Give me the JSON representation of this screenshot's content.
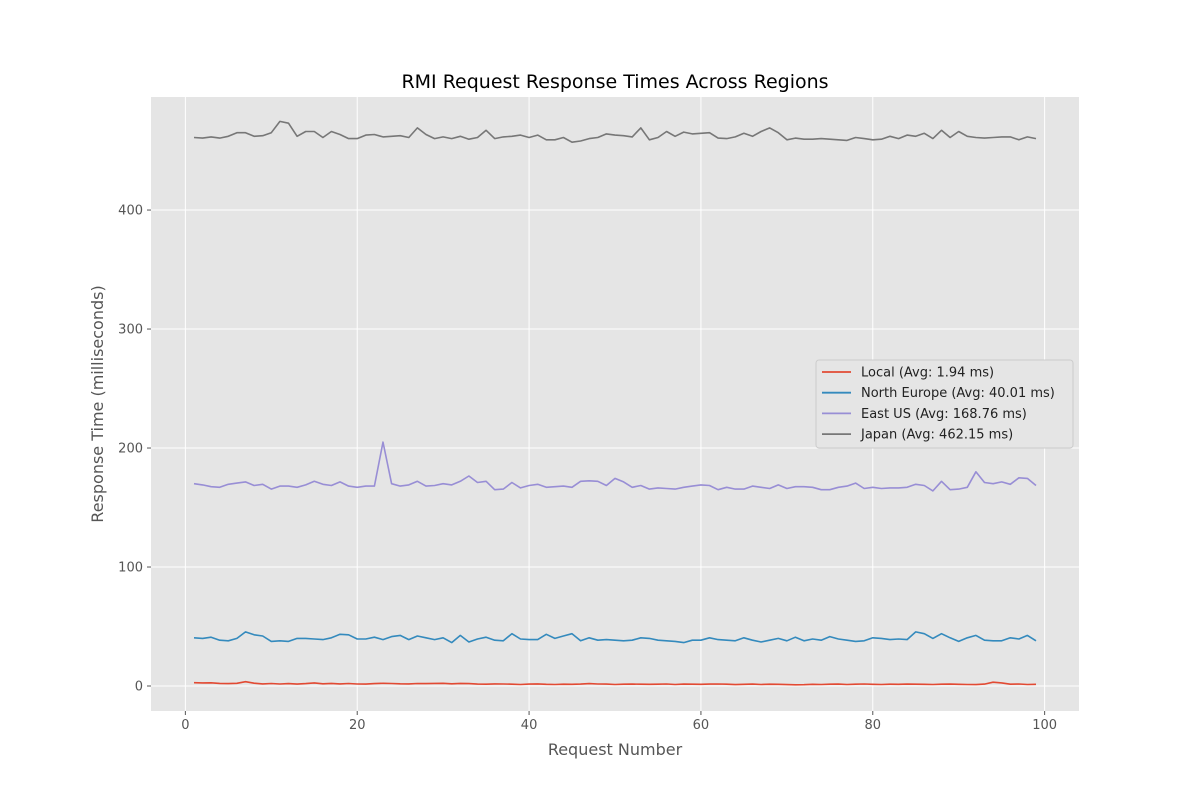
{
  "chart_data": {
    "type": "line",
    "title": "RMI Request Response Times Across Regions",
    "xlabel": "Request Number",
    "ylabel": "Response Time (milliseconds)",
    "xlim": [
      -4,
      104
    ],
    "ylim": [
      -21,
      495
    ],
    "xticks": [
      0,
      20,
      40,
      60,
      80,
      100
    ],
    "yticks": [
      0,
      100,
      200,
      300,
      400
    ],
    "grid": true,
    "legend_position": "center-right",
    "series": [
      {
        "name": "Local (Avg: 1.94 ms)",
        "color": "#E24A33",
        "x": [
          1,
          2,
          3,
          4,
          5,
          6,
          7,
          8,
          9,
          10,
          11,
          12,
          13,
          14,
          15,
          16,
          17,
          18,
          19,
          20,
          21,
          22,
          23,
          24,
          25,
          26,
          27,
          28,
          29,
          30,
          31,
          32,
          33,
          34,
          35,
          36,
          37,
          38,
          39,
          40,
          41,
          42,
          43,
          44,
          45,
          46,
          47,
          48,
          49,
          50,
          51,
          52,
          53,
          54,
          55,
          56,
          57,
          58,
          59,
          60,
          61,
          62,
          63,
          64,
          65,
          66,
          67,
          68,
          69,
          70,
          71,
          72,
          73,
          74,
          75,
          76,
          77,
          78,
          79,
          80,
          81,
          82,
          83,
          84,
          85,
          86,
          87,
          88,
          89,
          90,
          91,
          92,
          93,
          94,
          95,
          96,
          97,
          98,
          99
        ],
        "y": [
          2.8,
          2.6,
          2.7,
          2.2,
          2.0,
          2.3,
          3.6,
          2.4,
          1.8,
          2.1,
          1.7,
          2.0,
          1.6,
          2.0,
          2.6,
          1.9,
          2.2,
          1.8,
          2.1,
          1.7,
          1.6,
          2.0,
          2.3,
          2.1,
          1.9,
          1.8,
          2.1,
          2.0,
          2.2,
          2.3,
          1.9,
          2.2,
          2.0,
          1.6,
          1.5,
          1.8,
          1.7,
          1.5,
          1.3,
          1.6,
          1.8,
          1.4,
          1.3,
          1.5,
          1.4,
          1.6,
          2.0,
          1.7,
          1.6,
          1.3,
          1.5,
          1.6,
          1.5,
          1.4,
          1.5,
          1.7,
          1.3,
          1.6,
          1.5,
          1.4,
          1.6,
          1.7,
          1.5,
          1.2,
          1.4,
          1.6,
          1.3,
          1.5,
          1.4,
          1.2,
          1.0,
          1.1,
          1.4,
          1.3,
          1.5,
          1.6,
          1.3,
          1.5,
          1.7,
          1.4,
          1.3,
          1.5,
          1.4,
          1.6,
          1.5,
          1.4,
          1.3,
          1.5,
          1.6,
          1.4,
          1.3,
          1.2,
          1.6,
          3.2,
          2.6,
          1.5,
          1.7,
          1.3,
          1.4
        ]
      },
      {
        "name": "North Europe (Avg: 40.01 ms)",
        "color": "#348ABD",
        "x": [
          1,
          2,
          3,
          4,
          5,
          6,
          7,
          8,
          9,
          10,
          11,
          12,
          13,
          14,
          15,
          16,
          17,
          18,
          19,
          20,
          21,
          22,
          23,
          24,
          25,
          26,
          27,
          28,
          29,
          30,
          31,
          32,
          33,
          34,
          35,
          36,
          37,
          38,
          39,
          40,
          41,
          42,
          43,
          44,
          45,
          46,
          47,
          48,
          49,
          50,
          51,
          52,
          53,
          54,
          55,
          56,
          57,
          58,
          59,
          60,
          61,
          62,
          63,
          64,
          65,
          66,
          67,
          68,
          69,
          70,
          71,
          72,
          73,
          74,
          75,
          76,
          77,
          78,
          79,
          80,
          81,
          82,
          83,
          84,
          85,
          86,
          87,
          88,
          89,
          90,
          91,
          92,
          93,
          94,
          95,
          96,
          97,
          98,
          99
        ],
        "y": [
          40.5,
          40.0,
          41.0,
          38.5,
          38.0,
          40.0,
          45.5,
          43.0,
          42.0,
          37.5,
          38.0,
          37.5,
          40.0,
          40.0,
          39.5,
          39.0,
          40.5,
          43.5,
          43.0,
          39.5,
          39.5,
          41.0,
          39.0,
          41.5,
          42.5,
          39.0,
          42.0,
          40.5,
          39.0,
          40.5,
          36.5,
          42.5,
          37.0,
          39.5,
          41.0,
          38.5,
          38.0,
          44.0,
          39.5,
          39.0,
          39.0,
          43.5,
          40.0,
          42.0,
          44.0,
          38.0,
          40.5,
          38.5,
          39.0,
          38.5,
          38.0,
          38.5,
          40.5,
          40.0,
          38.5,
          38.0,
          37.5,
          36.5,
          38.5,
          38.5,
          40.5,
          39.0,
          38.5,
          38.0,
          40.5,
          38.5,
          37.0,
          38.5,
          40.0,
          38.0,
          41.0,
          38.0,
          39.5,
          38.5,
          41.5,
          39.5,
          38.5,
          37.5,
          38.0,
          40.5,
          40.0,
          39.0,
          39.5,
          39.0,
          45.5,
          44.0,
          40.0,
          44.0,
          40.5,
          37.5,
          40.5,
          42.5,
          38.5,
          38.0,
          38.0,
          40.5,
          39.5,
          42.5,
          38.0
        ]
      },
      {
        "name": "East US (Avg: 168.76 ms)",
        "color": "#988ED5",
        "x": [
          1,
          2,
          3,
          4,
          5,
          6,
          7,
          8,
          9,
          10,
          11,
          12,
          13,
          14,
          15,
          16,
          17,
          18,
          19,
          20,
          21,
          22,
          23,
          24,
          25,
          26,
          27,
          28,
          29,
          30,
          31,
          32,
          33,
          34,
          35,
          36,
          37,
          38,
          39,
          40,
          41,
          42,
          43,
          44,
          45,
          46,
          47,
          48,
          49,
          50,
          51,
          52,
          53,
          54,
          55,
          56,
          57,
          58,
          59,
          60,
          61,
          62,
          63,
          64,
          65,
          66,
          67,
          68,
          69,
          70,
          71,
          72,
          73,
          74,
          75,
          76,
          77,
          78,
          79,
          80,
          81,
          82,
          83,
          84,
          85,
          86,
          87,
          88,
          89,
          90,
          91,
          92,
          93,
          94,
          95,
          96,
          97,
          98,
          99
        ],
        "y": [
          170,
          169,
          167.5,
          167,
          169.5,
          170.5,
          171.5,
          168.5,
          169.5,
          165.5,
          168,
          168,
          167,
          169,
          172,
          169.5,
          168.5,
          171.5,
          168,
          167,
          168,
          168,
          205,
          170,
          168,
          169,
          172,
          168,
          168.5,
          170,
          169,
          172,
          176.5,
          171,
          172,
          165,
          165.5,
          171,
          166.5,
          168.5,
          169.5,
          167,
          167.5,
          168,
          167,
          172,
          172.5,
          172,
          168.5,
          174.5,
          171.5,
          167,
          168.5,
          165.5,
          166.5,
          166,
          165.5,
          167,
          168,
          169,
          168.5,
          165,
          167,
          165.5,
          165.5,
          168,
          167,
          166,
          169,
          166,
          167.5,
          167.5,
          167,
          165,
          165,
          167,
          168,
          170.5,
          166,
          167,
          166,
          166.5,
          166.5,
          167,
          169.5,
          168.5,
          164,
          172,
          165,
          165.5,
          167,
          180,
          171,
          170,
          171.5,
          169.5,
          175,
          174.5,
          168.5
        ]
      },
      {
        "name": "Japan (Avg: 462.15 ms)",
        "color": "#777777",
        "x": [
          1,
          2,
          3,
          4,
          5,
          6,
          7,
          8,
          9,
          10,
          11,
          12,
          13,
          14,
          15,
          16,
          17,
          18,
          19,
          20,
          21,
          22,
          23,
          24,
          25,
          26,
          27,
          28,
          29,
          30,
          31,
          32,
          33,
          34,
          35,
          36,
          37,
          38,
          39,
          40,
          41,
          42,
          43,
          44,
          45,
          46,
          47,
          48,
          49,
          50,
          51,
          52,
          53,
          54,
          55,
          56,
          57,
          58,
          59,
          60,
          61,
          62,
          63,
          64,
          65,
          66,
          67,
          68,
          69,
          70,
          71,
          72,
          73,
          74,
          75,
          76,
          77,
          78,
          79,
          80,
          81,
          82,
          83,
          84,
          85,
          86,
          87,
          88,
          89,
          90,
          91,
          92,
          93,
          94,
          95,
          96,
          97,
          98,
          99
        ],
        "y": [
          461,
          460.5,
          461.5,
          460.5,
          462,
          465,
          465,
          462,
          462.5,
          465,
          474.5,
          473,
          462,
          466,
          466,
          461,
          466,
          463.5,
          460,
          460,
          463,
          463.5,
          461.5,
          462,
          462.5,
          461,
          469,
          463.5,
          460,
          461.5,
          460,
          462,
          459.5,
          461,
          467,
          460,
          461.5,
          462,
          463,
          461,
          463,
          459,
          459,
          461,
          457,
          458,
          460,
          461,
          464,
          463,
          462.5,
          461.5,
          469,
          459,
          461,
          466,
          462,
          465.5,
          464,
          464.5,
          465,
          460.5,
          460,
          461.5,
          464.5,
          462,
          466,
          469,
          465,
          459,
          460.5,
          459.5,
          459.5,
          460,
          459.5,
          459,
          458.5,
          461,
          460,
          459,
          459.5,
          462,
          460,
          463,
          462,
          464.5,
          460,
          467,
          461,
          466,
          462,
          461,
          460.5,
          461,
          461.5,
          461.5,
          459,
          461.5,
          460
        ]
      }
    ]
  }
}
